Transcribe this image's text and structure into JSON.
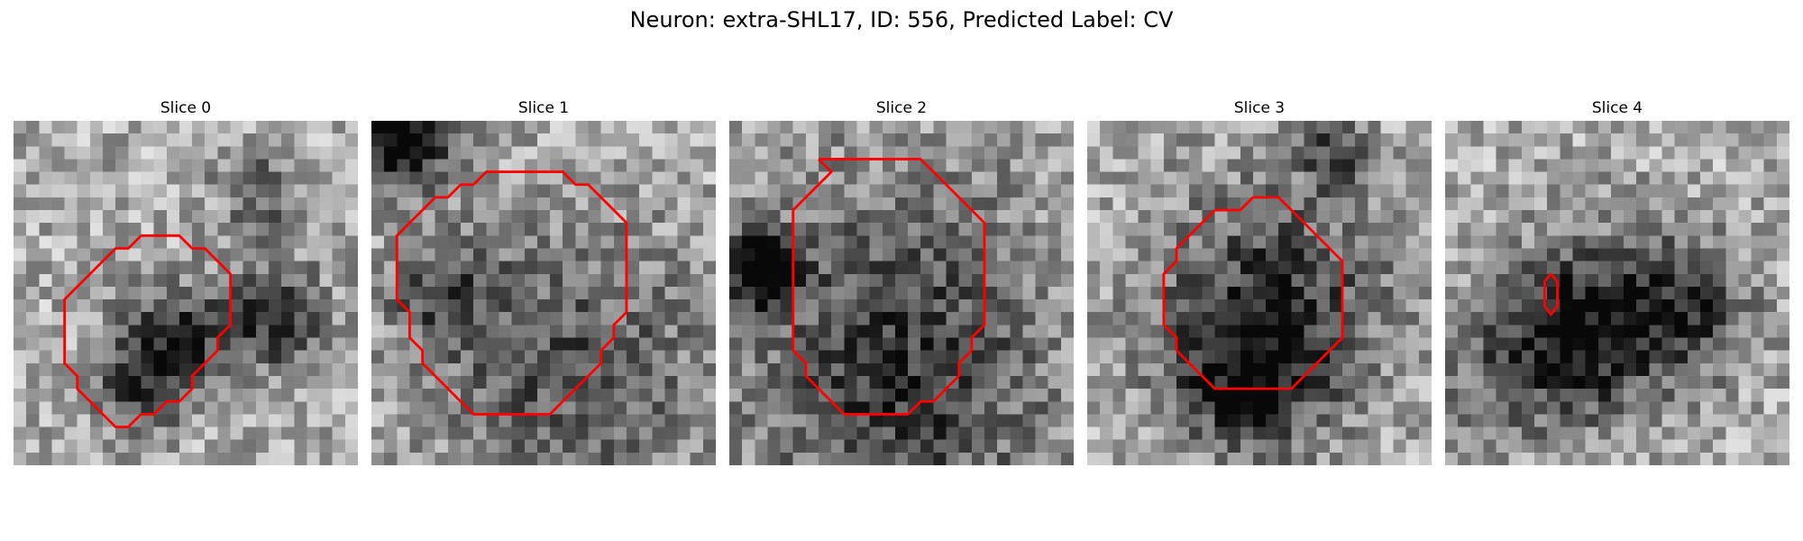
{
  "figure": {
    "title": "Neuron: extra-SHL17, ID: 556, Predicted Label: CV"
  },
  "panels": [
    {
      "title": "Slice 0",
      "seed": 17,
      "contour_color": "#ff0000",
      "dark_spots": [
        [
          12,
          17,
          3.0,
          0.55
        ],
        [
          20,
          15,
          3.0,
          0.45
        ],
        [
          9,
          21,
          2.5,
          0.3
        ],
        [
          19,
          5,
          2.5,
          0.3
        ]
      ],
      "contour": [
        [
          10,
          9
        ],
        [
          11,
          9
        ],
        [
          12,
          9
        ],
        [
          13,
          9
        ],
        [
          14,
          10
        ],
        [
          15,
          10
        ],
        [
          16,
          11
        ],
        [
          17,
          12
        ],
        [
          17,
          13
        ],
        [
          17,
          14
        ],
        [
          17,
          15
        ],
        [
          17,
          16
        ],
        [
          16,
          17
        ],
        [
          16,
          18
        ],
        [
          15,
          19
        ],
        [
          14,
          20
        ],
        [
          14,
          21
        ],
        [
          13,
          22
        ],
        [
          12,
          22
        ],
        [
          11,
          23
        ],
        [
          10,
          23
        ],
        [
          9,
          24
        ],
        [
          8,
          24
        ],
        [
          7,
          23
        ],
        [
          6,
          22
        ],
        [
          5,
          21
        ],
        [
          5,
          20
        ],
        [
          4,
          19
        ],
        [
          4,
          18
        ],
        [
          4,
          17
        ],
        [
          4,
          16
        ],
        [
          4,
          15
        ],
        [
          4,
          14
        ],
        [
          5,
          13
        ],
        [
          6,
          12
        ],
        [
          7,
          11
        ],
        [
          8,
          10
        ],
        [
          9,
          10
        ],
        [
          10,
          9
        ]
      ]
    },
    {
      "title": "Slice 1",
      "seed": 29,
      "contour_color": "#ff0000",
      "dark_spots": [
        [
          2,
          1,
          2.5,
          0.8
        ],
        [
          15,
          19,
          8.0,
          0.35
        ],
        [
          5,
          13,
          3.0,
          0.3
        ]
      ],
      "contour": [
        [
          7,
          5
        ],
        [
          8,
          5
        ],
        [
          9,
          4
        ],
        [
          10,
          4
        ],
        [
          11,
          4
        ],
        [
          12,
          4
        ],
        [
          13,
          4
        ],
        [
          14,
          4
        ],
        [
          15,
          4
        ],
        [
          16,
          5
        ],
        [
          17,
          5
        ],
        [
          18,
          6
        ],
        [
          19,
          7
        ],
        [
          20,
          8
        ],
        [
          20,
          9
        ],
        [
          20,
          10
        ],
        [
          20,
          11
        ],
        [
          20,
          12
        ],
        [
          20,
          13
        ],
        [
          20,
          14
        ],
        [
          20,
          15
        ],
        [
          19,
          16
        ],
        [
          19,
          17
        ],
        [
          18,
          18
        ],
        [
          18,
          19
        ],
        [
          17,
          20
        ],
        [
          16,
          21
        ],
        [
          15,
          22
        ],
        [
          14,
          23
        ],
        [
          13,
          23
        ],
        [
          12,
          23
        ],
        [
          11,
          23
        ],
        [
          10,
          23
        ],
        [
          9,
          23
        ],
        [
          8,
          23
        ],
        [
          7,
          22
        ],
        [
          6,
          21
        ],
        [
          5,
          20
        ],
        [
          4,
          19
        ],
        [
          4,
          18
        ],
        [
          3,
          17
        ],
        [
          3,
          16
        ],
        [
          3,
          15
        ],
        [
          2,
          14
        ],
        [
          2,
          13
        ],
        [
          2,
          12
        ],
        [
          2,
          11
        ],
        [
          2,
          10
        ],
        [
          2,
          9
        ],
        [
          3,
          8
        ],
        [
          4,
          7
        ],
        [
          5,
          6
        ],
        [
          6,
          6
        ],
        [
          7,
          5
        ]
      ]
    },
    {
      "title": "Slice 2",
      "seed": 41,
      "contour_color": "#ff0000",
      "dark_spots": [
        [
          2,
          11,
          2.0,
          0.85
        ],
        [
          13,
          22,
          8.0,
          0.35
        ],
        [
          13,
          12,
          9.0,
          0.2
        ]
      ],
      "contour": [
        [
          7,
          3
        ],
        [
          8,
          3
        ],
        [
          9,
          3
        ],
        [
          10,
          3
        ],
        [
          11,
          3
        ],
        [
          12,
          3
        ],
        [
          13,
          3
        ],
        [
          14,
          3
        ],
        [
          15,
          3
        ],
        [
          16,
          4
        ],
        [
          17,
          5
        ],
        [
          18,
          6
        ],
        [
          19,
          7
        ],
        [
          20,
          8
        ],
        [
          20,
          9
        ],
        [
          20,
          10
        ],
        [
          20,
          11
        ],
        [
          20,
          12
        ],
        [
          20,
          13
        ],
        [
          20,
          14
        ],
        [
          20,
          15
        ],
        [
          20,
          16
        ],
        [
          19,
          17
        ],
        [
          19,
          18
        ],
        [
          18,
          19
        ],
        [
          18,
          20
        ],
        [
          17,
          21
        ],
        [
          16,
          22
        ],
        [
          15,
          22
        ],
        [
          14,
          23
        ],
        [
          13,
          23
        ],
        [
          12,
          23
        ],
        [
          11,
          23
        ],
        [
          10,
          23
        ],
        [
          9,
          23
        ],
        [
          8,
          22
        ],
        [
          7,
          21
        ],
        [
          6,
          20
        ],
        [
          6,
          19
        ],
        [
          5,
          18
        ],
        [
          5,
          17
        ],
        [
          5,
          16
        ],
        [
          5,
          15
        ],
        [
          5,
          14
        ],
        [
          5,
          13
        ],
        [
          5,
          12
        ],
        [
          5,
          11
        ],
        [
          5,
          10
        ],
        [
          5,
          9
        ],
        [
          5,
          8
        ],
        [
          5,
          7
        ],
        [
          6,
          6
        ],
        [
          7,
          5
        ],
        [
          8,
          4
        ],
        [
          7,
          3
        ]
      ]
    },
    {
      "title": "Slice 3",
      "seed": 53,
      "contour_color": "#ff0000",
      "dark_spots": [
        [
          14,
          14,
          6.5,
          0.45
        ],
        [
          12,
          20,
          4.0,
          0.4
        ],
        [
          19,
          2,
          2.0,
          0.4
        ]
      ],
      "contour": [
        [
          10,
          7
        ],
        [
          11,
          7
        ],
        [
          12,
          7
        ],
        [
          13,
          6
        ],
        [
          14,
          6
        ],
        [
          15,
          6
        ],
        [
          16,
          7
        ],
        [
          17,
          8
        ],
        [
          18,
          9
        ],
        [
          19,
          10
        ],
        [
          20,
          11
        ],
        [
          20,
          12
        ],
        [
          20,
          13
        ],
        [
          20,
          14
        ],
        [
          20,
          15
        ],
        [
          20,
          16
        ],
        [
          20,
          17
        ],
        [
          19,
          18
        ],
        [
          18,
          19
        ],
        [
          17,
          20
        ],
        [
          16,
          21
        ],
        [
          15,
          21
        ],
        [
          14,
          21
        ],
        [
          13,
          21
        ],
        [
          12,
          21
        ],
        [
          11,
          21
        ],
        [
          10,
          21
        ],
        [
          9,
          20
        ],
        [
          8,
          19
        ],
        [
          7,
          18
        ],
        [
          7,
          17
        ],
        [
          6,
          16
        ],
        [
          6,
          15
        ],
        [
          6,
          14
        ],
        [
          6,
          13
        ],
        [
          6,
          12
        ],
        [
          7,
          11
        ],
        [
          7,
          10
        ],
        [
          8,
          9
        ],
        [
          9,
          8
        ],
        [
          10,
          7
        ]
      ]
    },
    {
      "title": "Slice 4",
      "seed": 67,
      "contour_color": "#ff0000",
      "dark_spots": [
        [
          12,
          15,
          5.0,
          0.4
        ],
        [
          9,
          17,
          4.0,
          0.3
        ],
        [
          19,
          14,
          3.5,
          0.35
        ],
        [
          3,
          20,
          4.0,
          0.2
        ]
      ],
      "contour": [
        [
          8.3,
          12
        ],
        [
          8.8,
          12.6
        ],
        [
          8.8,
          14.5
        ],
        [
          8.3,
          15.2
        ],
        [
          7.8,
          14.5
        ],
        [
          7.8,
          12.6
        ],
        [
          8.3,
          12
        ]
      ]
    }
  ]
}
